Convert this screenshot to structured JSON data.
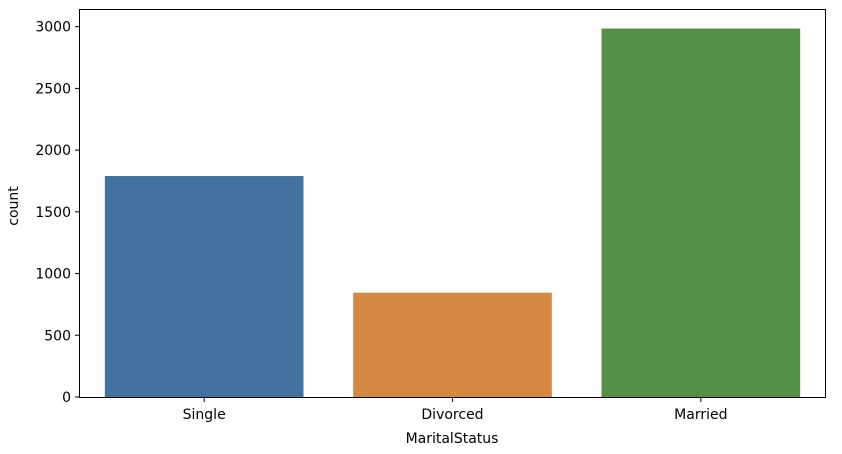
{
  "chart_data": {
    "type": "bar",
    "categories": [
      "Single",
      "Divorced",
      "Married"
    ],
    "values": [
      1790,
      845,
      2985
    ],
    "colors": [
      "#4472a0",
      "#d58841",
      "#549045"
    ],
    "xlabel": "MaritalStatus",
    "ylabel": "count",
    "ylim": [
      0,
      3135
    ],
    "yticks": [
      0,
      500,
      1000,
      1500,
      2000,
      2500,
      3000
    ],
    "grid": false
  }
}
